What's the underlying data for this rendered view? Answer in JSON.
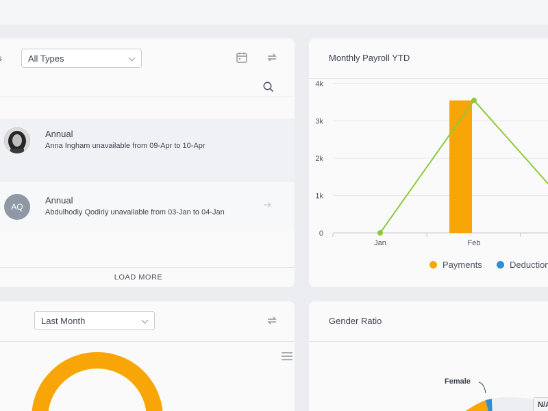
{
  "leave_card": {
    "types_label": "es",
    "type_select": "All Types",
    "items": [
      {
        "title": "Annual",
        "description": "Anna Ingham unavailable from 09-Apr to 10-Apr",
        "initials": ""
      },
      {
        "title": "Annual",
        "description": "Abdulhodiy Qodiriy unavailable from 03-Jan to 04-Jan",
        "initials": "AQ"
      }
    ],
    "load_more": "LOAD MORE"
  },
  "payroll_card": {
    "title": "Monthly Payroll YTD",
    "legend": [
      "Payments",
      "Deduction"
    ]
  },
  "chart_data": {
    "type": "bar",
    "categories": [
      "Jan",
      "Feb"
    ],
    "ylim": [
      0,
      4000
    ],
    "yticks": [
      "0",
      "1k",
      "2k",
      "3k",
      "4k"
    ],
    "series": [
      {
        "name": "Payments",
        "type": "bar",
        "color": "#f8a607",
        "values": [
          0,
          3550
        ]
      },
      {
        "name": "Deduction",
        "type": "line",
        "color": "#8fc93a",
        "values": [
          0,
          3550
        ]
      }
    ],
    "legend_position": "bottom",
    "grid": true
  },
  "month_card": {
    "period_select": "Last Month"
  },
  "gender_card": {
    "title": "Gender Ratio",
    "female_label": "Female",
    "na_label": "N/A"
  },
  "colors": {
    "accent_orange": "#f8a607",
    "accent_green": "#8fc93a",
    "accent_blue": "#2d8fd5"
  }
}
